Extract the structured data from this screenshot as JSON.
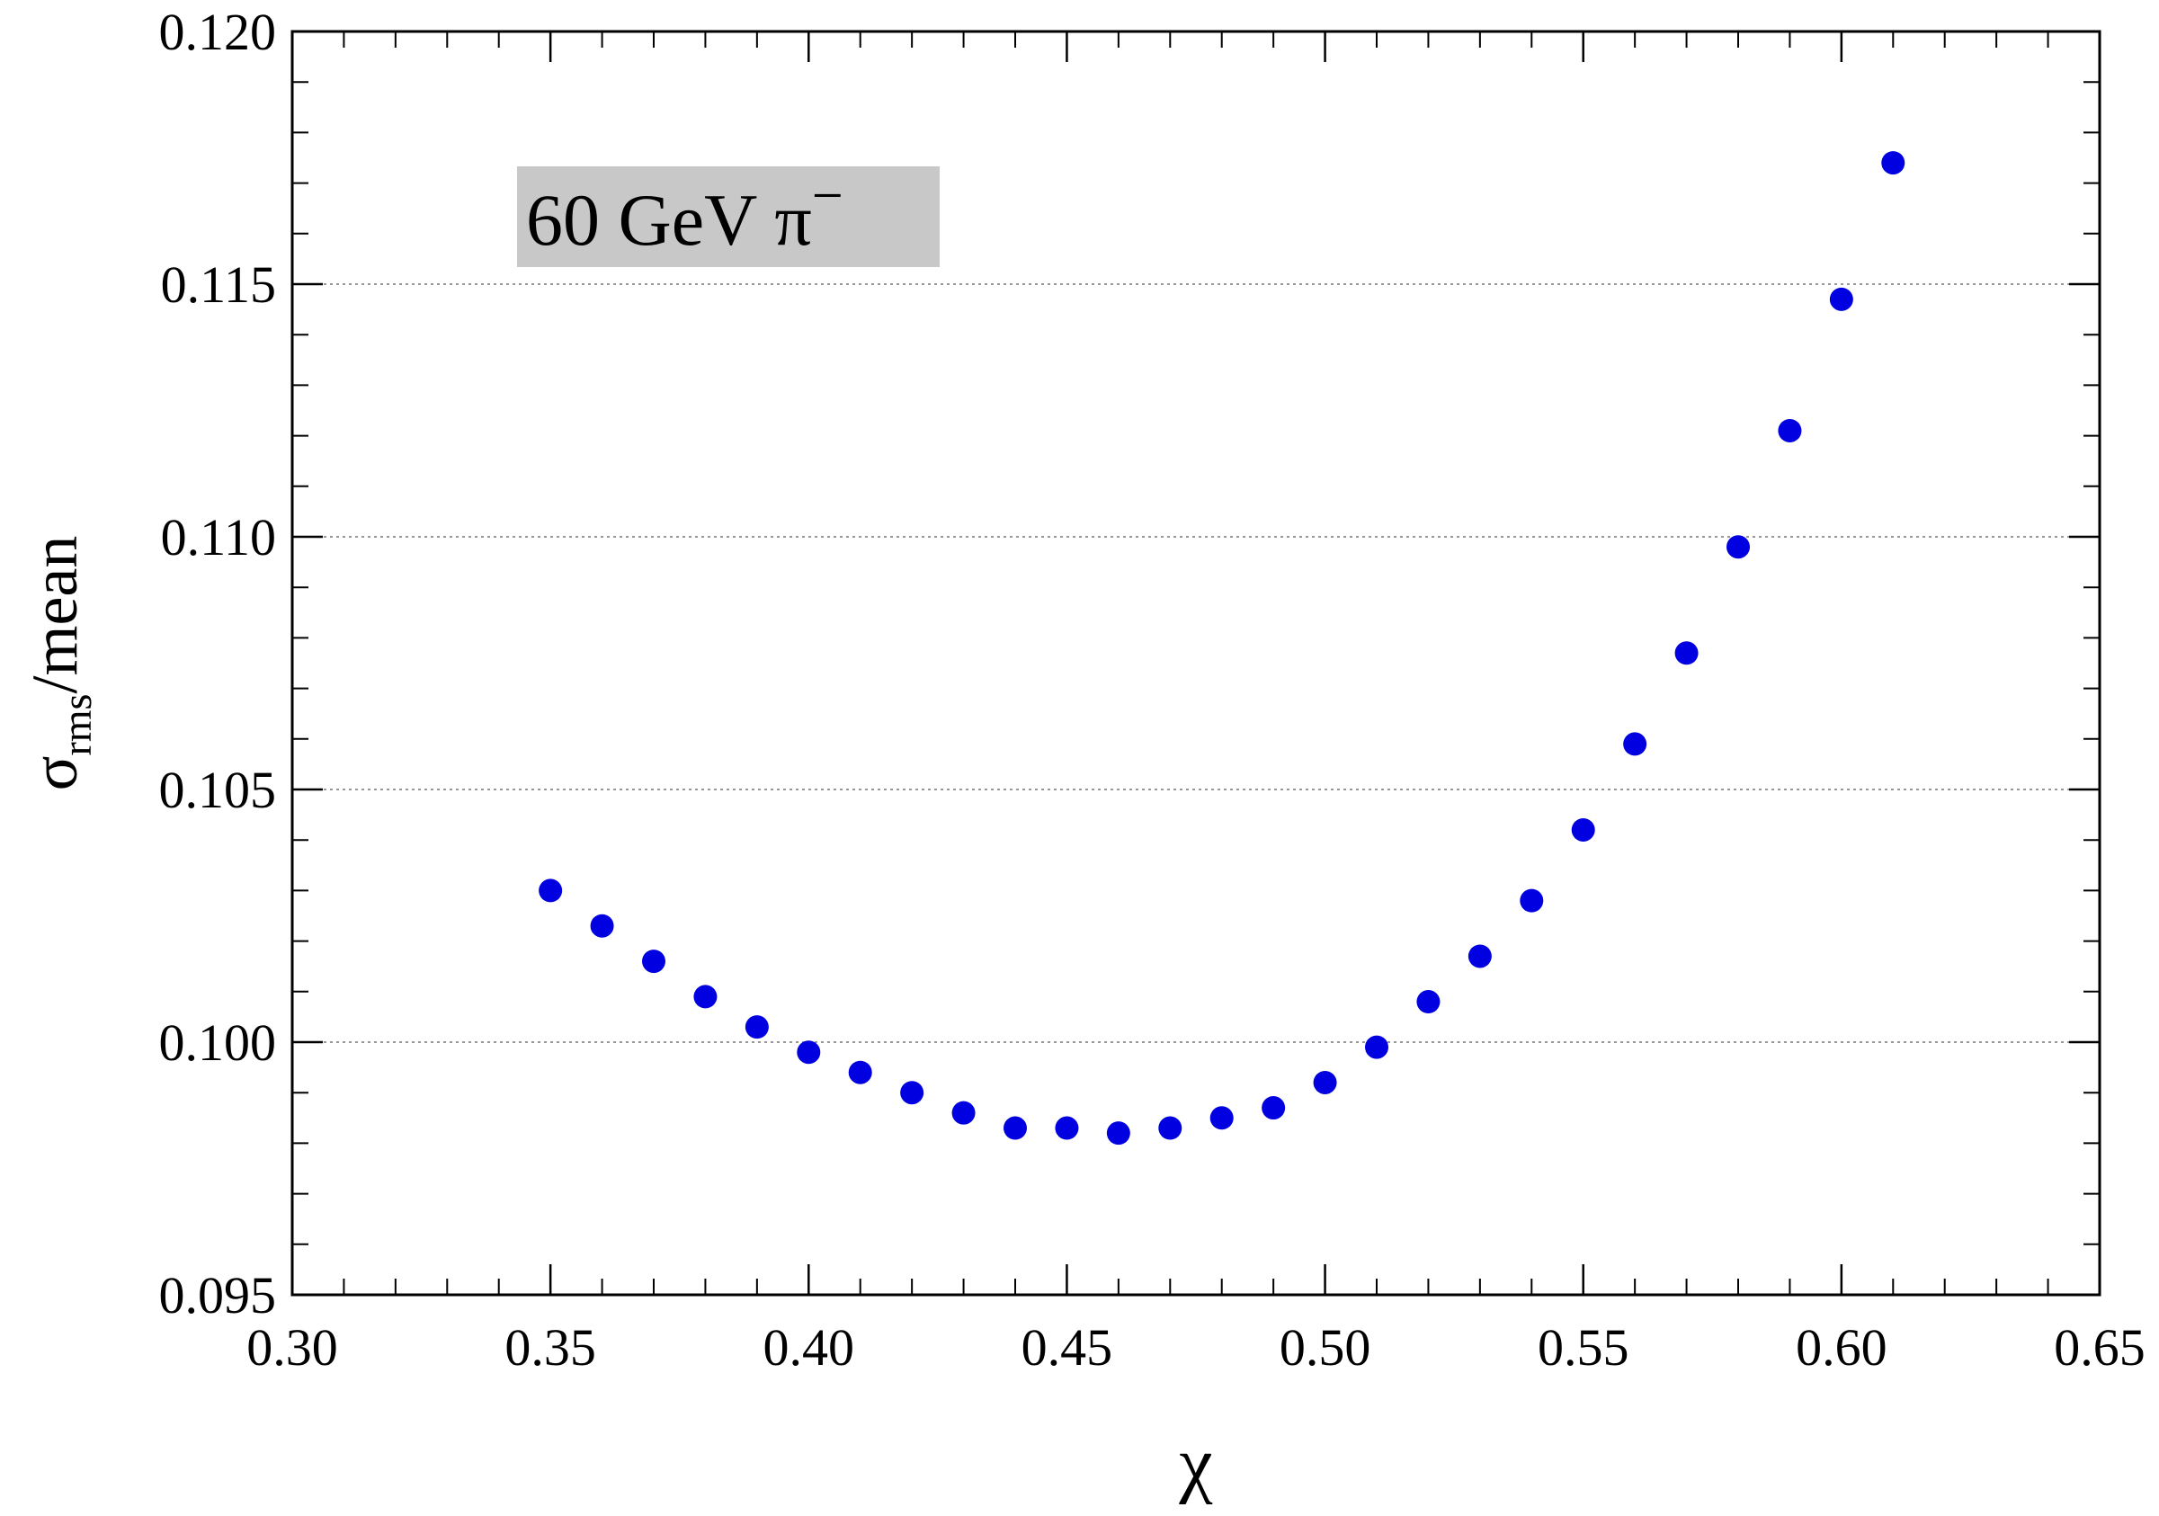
{
  "chart_data": {
    "type": "scatter",
    "title": "",
    "xlabel": "χ",
    "ylabel": {
      "symbol": "σ",
      "subscript": "rms",
      "suffix": "/mean"
    },
    "xlim": [
      0.3,
      0.65
    ],
    "ylim": [
      0.095,
      0.12
    ],
    "x_ticks": [
      "0.30",
      "0.35",
      "0.40",
      "0.45",
      "0.50",
      "0.55",
      "0.60",
      "0.65"
    ],
    "y_ticks": [
      "0.095",
      "0.100",
      "0.105",
      "0.110",
      "0.115",
      "0.120"
    ],
    "grid": "horizontal dotted at major y ticks",
    "annotation": {
      "text": "60 GeV π",
      "superscript": "−",
      "placement": "top-left",
      "background": "#c8c8c8"
    },
    "marker_color": "#0000e0",
    "series": [
      {
        "x": [
          0.35,
          0.36,
          0.37,
          0.38,
          0.39,
          0.4,
          0.41,
          0.42,
          0.43,
          0.44,
          0.45,
          0.46,
          0.47,
          0.48,
          0.49,
          0.5,
          0.51,
          0.52,
          0.53,
          0.54,
          0.55,
          0.56,
          0.57,
          0.58,
          0.59,
          0.6,
          0.61
        ],
        "y": [
          0.103,
          0.1023,
          0.1016,
          0.1009,
          0.1003,
          0.0998,
          0.0994,
          0.099,
          0.0986,
          0.0983,
          0.0983,
          0.0982,
          0.0983,
          0.0985,
          0.0987,
          0.0992,
          0.0999,
          0.1008,
          0.1017,
          0.1028,
          0.1042,
          0.1059,
          0.1077,
          0.1098,
          0.1121,
          0.1147,
          0.1174
        ]
      }
    ]
  }
}
